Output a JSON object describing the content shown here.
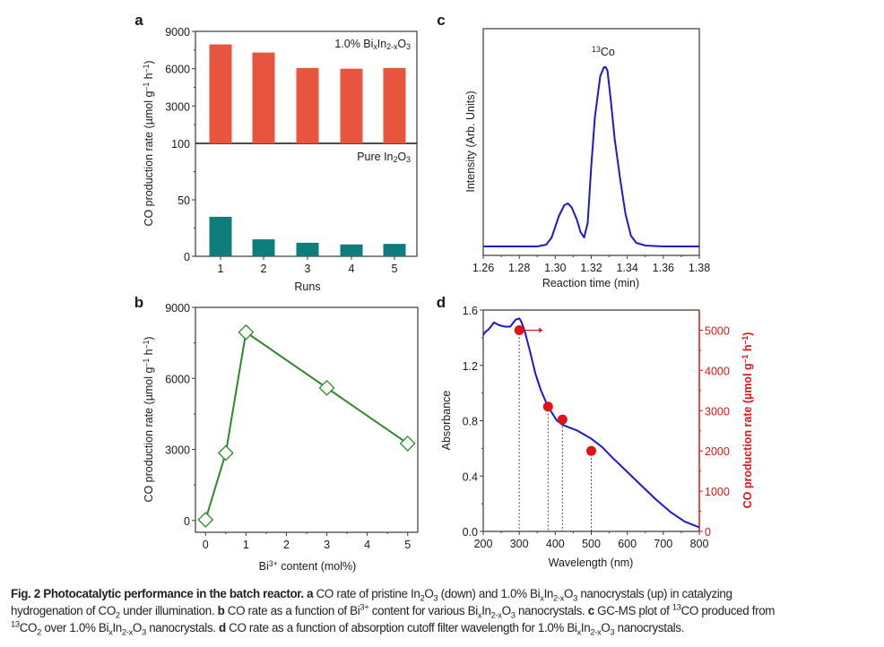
{
  "chart_data": [
    {
      "panel": "a",
      "type": "bar",
      "categories": [
        "1",
        "2",
        "3",
        "4",
        "5"
      ],
      "xlabel": "Runs",
      "ylabel": "CO production rate (µmol g^{–1} h^{–1})",
      "series": [
        {
          "name": "1.0% Bi_{x}In_{2-x}O_{3}",
          "color": "#e8553f",
          "values": [
            7950,
            7300,
            6050,
            6000,
            6050
          ],
          "ylim": [
            0,
            9000
          ],
          "yticks": [
            "100",
            "3000",
            "6000",
            "9000"
          ]
        },
        {
          "name": "Pure In_{2}O_{3}",
          "color": "#0f7d7b",
          "values": [
            35,
            15,
            12,
            10.5,
            11
          ],
          "ylim": [
            0,
            100
          ],
          "yticks": [
            "0",
            "50",
            "100"
          ]
        }
      ]
    },
    {
      "panel": "b",
      "type": "line",
      "x": [
        0,
        0.5,
        1,
        3,
        5
      ],
      "y": [
        30,
        2850,
        7950,
        5600,
        3250
      ],
      "color": "#2a8a2a",
      "xlabel": "Bi^{3+} content (mol%)",
      "ylabel": "CO production rate (µmol g^{–1} h^{–1})",
      "xticks": [
        "0",
        "1",
        "2",
        "3",
        "4",
        "5"
      ],
      "yticks": [
        "0",
        "3000",
        "6000",
        "9000"
      ],
      "xlim": [
        -0.25,
        5.25
      ],
      "ylim": [
        -500,
        9000
      ]
    },
    {
      "panel": "c",
      "type": "line",
      "x": [
        1.26,
        1.29,
        1.295,
        1.298,
        1.302,
        1.305,
        1.307,
        1.309,
        1.312,
        1.314,
        1.316,
        1.318,
        1.32,
        1.322,
        1.325,
        1.327,
        1.328,
        1.329,
        1.331,
        1.333,
        1.336,
        1.339,
        1.342,
        1.345,
        1.35,
        1.36,
        1.38
      ],
      "y": [
        0.0,
        0.0,
        0.01,
        0.05,
        0.17,
        0.23,
        0.24,
        0.22,
        0.15,
        0.08,
        0.05,
        0.13,
        0.45,
        0.72,
        0.95,
        1.0,
        1.0,
        0.98,
        0.8,
        0.6,
        0.38,
        0.18,
        0.06,
        0.02,
        0.005,
        0.0,
        0.0
      ],
      "color": "#1a1ad0",
      "annotation": "^{13}Co",
      "xlabel": "Reaction time (min)",
      "ylabel": "Intensity (Arb. Units)",
      "xticks": [
        "1.26",
        "1.28",
        "1.30",
        "1.32",
        "1.34",
        "1.36",
        "1.38"
      ],
      "xlim": [
        1.26,
        1.38
      ]
    },
    {
      "panel": "d",
      "type": "line",
      "x": [
        200,
        205,
        215,
        230,
        245,
        260,
        275,
        290,
        300,
        305,
        315,
        330,
        345,
        360,
        375,
        390,
        405,
        420,
        440,
        460,
        480,
        500,
        530,
        560,
        600,
        640,
        680,
        720,
        760,
        800
      ],
      "y": [
        1.42,
        1.44,
        1.46,
        1.51,
        1.49,
        1.48,
        1.48,
        1.53,
        1.54,
        1.52,
        1.45,
        1.3,
        1.14,
        1.02,
        0.93,
        0.86,
        0.8,
        0.77,
        0.75,
        0.73,
        0.7,
        0.67,
        0.61,
        0.53,
        0.43,
        0.33,
        0.23,
        0.14,
        0.07,
        0.03
      ],
      "color": "#1a1ad0",
      "xlabel": "Wavelength (nm)",
      "ylabel": "Absorbance",
      "y2label": "CO production rate (µmol g^{–1} h^{–1})",
      "xticks": [
        "200",
        "300",
        "400",
        "500",
        "600",
        "700",
        "800"
      ],
      "yticks": [
        "0.0",
        "0.4",
        "0.8",
        "1.2",
        "1.6"
      ],
      "y2ticks": [
        "0",
        "1000",
        "2000",
        "3000",
        "4000",
        "5000"
      ],
      "xlim": [
        200,
        800
      ],
      "ylim": [
        0,
        1.6
      ],
      "y2lim": [
        0,
        5500
      ],
      "y2_series": {
        "x": [
          300,
          380,
          420,
          500
        ],
        "y": [
          5000,
          3100,
          2780,
          2000
        ],
        "color": "#e01414"
      }
    }
  ],
  "caption": {
    "lines": [
      [
        [
          "b",
          "Fig. 2 Photocatalytic performance in the batch reactor. a"
        ],
        [
          "n",
          " CO rate of pristine In_{2}O_{3} (down) and 1.0% Bi_{x}In_{2-x}O_{3} nanocrystals (up) in catalyzing"
        ]
      ],
      [
        [
          "n",
          "hydrogenation of CO_{2} under illumination. "
        ],
        [
          "b",
          "b"
        ],
        [
          "n",
          " CO rate as a function of Bi^{3+} content for various Bi_{x}In_{2-x}O_{3} nanocrystals. "
        ],
        [
          "b",
          "c"
        ],
        [
          "n",
          " GC-MS plot of ^{13}CO produced from"
        ]
      ],
      [
        [
          "n",
          "^{13}CO_{2} over 1.0% Bi_{x}In_{2-x}O_{3} nanocrystals. "
        ],
        [
          "b",
          "d"
        ],
        [
          "n",
          " CO rate as a function of absorption cutoff filter wavelength for 1.0% Bi_{x}In_{2-x}O_{3} nanocrystals."
        ]
      ]
    ]
  },
  "panel_labels": [
    "a",
    "b",
    "c",
    "d"
  ]
}
